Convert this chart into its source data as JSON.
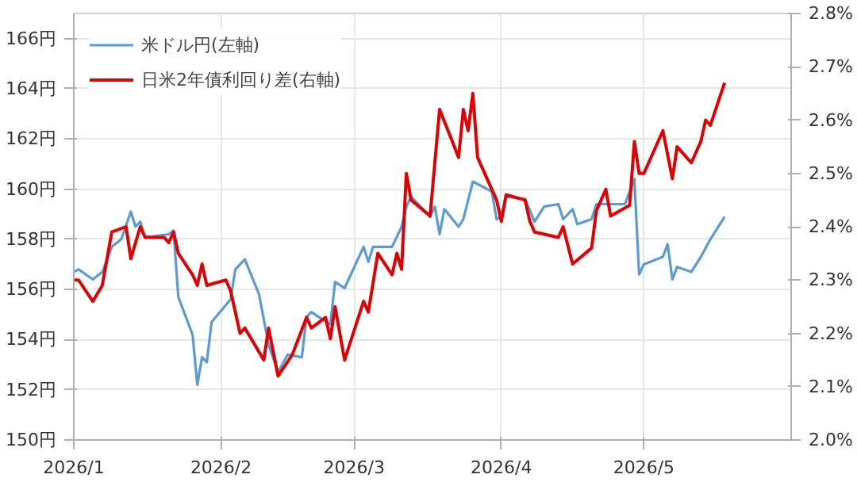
{
  "chart_data": {
    "type": "line",
    "legend": "top left",
    "grid": true,
    "marker": "none",
    "line_style": "solid",
    "xlim": [
      "2026-01-01",
      "2026-06-01"
    ],
    "xticks": [
      {
        "value": "2026-01-01",
        "label": "2026/1"
      },
      {
        "value": "2026-02-01",
        "label": "2026/2"
      },
      {
        "value": "2026-03-01",
        "label": "2026/3"
      },
      {
        "value": "2026-04-01",
        "label": "2026/4"
      },
      {
        "value": "2026-05-01",
        "label": "2026/5"
      }
    ],
    "ylim": [
      150,
      167
    ],
    "yticks": [
      {
        "value": 150,
        "label": "150円"
      },
      {
        "value": 152,
        "label": "152円"
      },
      {
        "value": 154,
        "label": "154円"
      },
      {
        "value": 156,
        "label": "156円"
      },
      {
        "value": 158,
        "label": "158円"
      },
      {
        "value": 160,
        "label": "160円"
      },
      {
        "value": 162,
        "label": "162円"
      },
      {
        "value": 164,
        "label": "164円"
      },
      {
        "value": 166,
        "label": "166円"
      }
    ],
    "y2lim": [
      2.0,
      2.8
    ],
    "y2ticks": [
      {
        "value": 2.0,
        "label": "2.0%"
      },
      {
        "value": 2.1,
        "label": "2.1%"
      },
      {
        "value": 2.2,
        "label": "2.2%"
      },
      {
        "value": 2.3,
        "label": "2.3%"
      },
      {
        "value": 2.4,
        "label": "2.4%"
      },
      {
        "value": 2.5,
        "label": "2.5%"
      },
      {
        "value": 2.6,
        "label": "2.6%"
      },
      {
        "value": 2.7,
        "label": "2.7%"
      },
      {
        "value": 2.8,
        "label": "2.8%"
      }
    ],
    "series": [
      {
        "name": "米ドル円(左軸)",
        "color": "#5b9bd5",
        "x": [
          "2026-01-01",
          "2026-01-02",
          "2026-01-05",
          "2026-01-07",
          "2026-01-09",
          "2026-01-11",
          "2026-01-13",
          "2026-01-14",
          "2026-01-15",
          "2026-01-16",
          "2026-01-17",
          "2026-01-21",
          "2026-01-22",
          "2026-01-23",
          "2026-01-26",
          "2026-01-27",
          "2026-01-28",
          "2026-01-29",
          "2026-01-30",
          "2026-02-03",
          "2026-02-04",
          "2026-02-06",
          "2026-02-09",
          "2026-02-11",
          "2026-02-13",
          "2026-02-15",
          "2026-02-18",
          "2026-02-19",
          "2026-02-20",
          "2026-02-24",
          "2026-02-25",
          "2026-02-27",
          "2026-03-03",
          "2026-03-04",
          "2026-03-05",
          "2026-03-09",
          "2026-03-11",
          "2026-03-12",
          "2026-03-13",
          "2026-03-17",
          "2026-03-18",
          "2026-03-19",
          "2026-03-20",
          "2026-03-23",
          "2026-03-24",
          "2026-03-26",
          "2026-03-30",
          "2026-03-31",
          "2026-04-01",
          "2026-04-02",
          "2026-04-06",
          "2026-04-08",
          "2026-04-10",
          "2026-04-13",
          "2026-04-14",
          "2026-04-16",
          "2026-04-17",
          "2026-04-20",
          "2026-04-21",
          "2026-04-27",
          "2026-04-29",
          "2026-04-30",
          "2026-05-01",
          "2026-05-05",
          "2026-05-06",
          "2026-05-07",
          "2026-05-08",
          "2026-05-11",
          "2026-05-13",
          "2026-05-15",
          "2026-05-18"
        ],
        "values": [
          156.7,
          156.8,
          156.4,
          156.7,
          157.7,
          158.0,
          159.1,
          158.5,
          158.7,
          158.1,
          158.1,
          158.2,
          158.35,
          155.7,
          154.2,
          152.2,
          153.3,
          153.1,
          154.7,
          155.6,
          156.8,
          157.2,
          155.8,
          153.8,
          152.7,
          153.4,
          153.3,
          154.9,
          155.1,
          154.6,
          156.3,
          156.05,
          157.7,
          157.1,
          157.7,
          157.7,
          158.5,
          159.3,
          159.7,
          158.9,
          159.3,
          158.2,
          159.2,
          158.5,
          158.8,
          160.3,
          159.9,
          158.8,
          158.9,
          159.7,
          159.6,
          158.7,
          159.3,
          159.4,
          158.8,
          159.2,
          158.6,
          158.8,
          159.4,
          159.4,
          160.4,
          156.6,
          157.0,
          157.3,
          157.8,
          156.4,
          156.9,
          156.7,
          157.3,
          158.0,
          158.9
        ]
      },
      {
        "name": "日米2年債利回り差(右軸)",
        "color": "#e00000",
        "axis": "y2",
        "x": [
          "2026-01-01",
          "2026-01-02",
          "2026-01-05",
          "2026-01-07",
          "2026-01-09",
          "2026-01-12",
          "2026-01-13",
          "2026-01-15",
          "2026-01-16",
          "2026-01-20",
          "2026-01-21",
          "2026-01-22",
          "2026-01-23",
          "2026-01-26",
          "2026-01-27",
          "2026-01-28",
          "2026-01-29",
          "2026-02-02",
          "2026-02-03",
          "2026-02-05",
          "2026-02-06",
          "2026-02-10",
          "2026-02-11",
          "2026-02-13",
          "2026-02-16",
          "2026-02-19",
          "2026-02-20",
          "2026-02-23",
          "2026-02-24",
          "2026-02-25",
          "2026-02-27",
          "2026-03-03",
          "2026-03-04",
          "2026-03-06",
          "2026-03-09",
          "2026-03-10",
          "2026-03-11",
          "2026-03-12",
          "2026-03-13",
          "2026-03-17",
          "2026-03-19",
          "2026-03-23",
          "2026-03-24",
          "2026-03-25",
          "2026-03-26",
          "2026-03-27",
          "2026-03-31",
          "2026-04-01",
          "2026-04-02",
          "2026-04-06",
          "2026-04-07",
          "2026-04-08",
          "2026-04-13",
          "2026-04-14",
          "2026-04-16",
          "2026-04-20",
          "2026-04-21",
          "2026-04-23",
          "2026-04-24",
          "2026-04-28",
          "2026-04-29",
          "2026-04-30",
          "2026-05-01",
          "2026-05-05",
          "2026-05-07",
          "2026-05-08",
          "2026-05-11",
          "2026-05-13",
          "2026-05-14",
          "2026-05-15",
          "2026-05-18"
        ],
        "values": [
          2.3,
          2.3,
          2.26,
          2.29,
          2.39,
          2.4,
          2.34,
          2.4,
          2.38,
          2.38,
          2.37,
          2.39,
          2.35,
          2.31,
          2.29,
          2.33,
          2.29,
          2.3,
          2.28,
          2.2,
          2.21,
          2.15,
          2.21,
          2.12,
          2.16,
          2.23,
          2.21,
          2.23,
          2.19,
          2.25,
          2.15,
          2.26,
          2.24,
          2.35,
          2.31,
          2.35,
          2.32,
          2.5,
          2.45,
          2.42,
          2.62,
          2.53,
          2.62,
          2.58,
          2.65,
          2.53,
          2.45,
          2.41,
          2.46,
          2.45,
          2.41,
          2.39,
          2.38,
          2.4,
          2.33,
          2.36,
          2.43,
          2.47,
          2.42,
          2.44,
          2.56,
          2.5,
          2.5,
          2.58,
          2.49,
          2.55,
          2.52,
          2.56,
          2.6,
          2.59,
          2.67
        ]
      }
    ]
  }
}
